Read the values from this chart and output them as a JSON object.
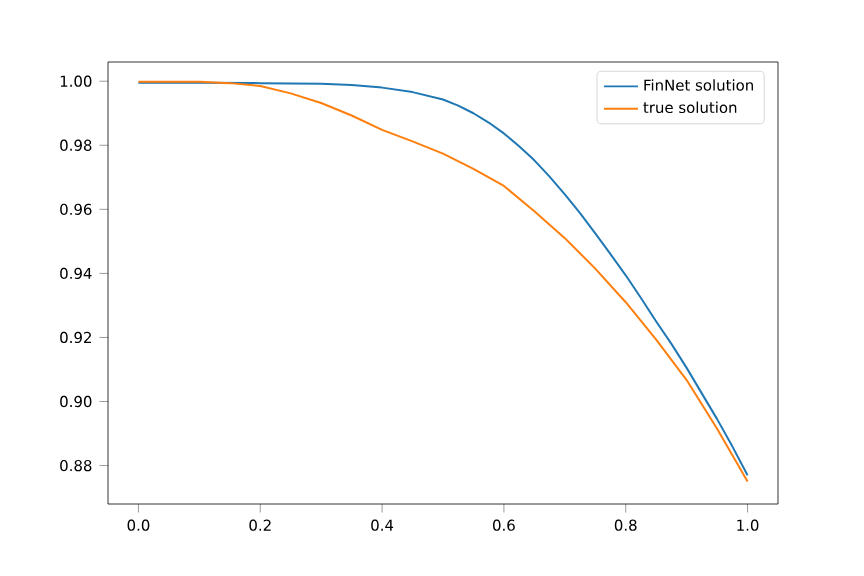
{
  "chart_data": {
    "type": "line",
    "xlim": [
      -0.05,
      1.05
    ],
    "ylim": [
      0.868,
      1.006
    ],
    "xticks": [
      {
        "value": 0,
        "label": "0.0"
      },
      0.2,
      0.4,
      0.6,
      0.8,
      {
        "value": 1,
        "label": "1.0"
      }
    ],
    "yticks": [
      0.88,
      {
        "value": 0.9,
        "label": "0.90"
      },
      0.92,
      0.94,
      0.96,
      0.98,
      {
        "value": 1,
        "label": "1.00"
      }
    ],
    "legend": "top right",
    "grid": false,
    "series": [
      {
        "name": "FinNet solution",
        "color": "#1f77b4",
        "x": [
          0,
          0.1,
          0.2,
          0.3,
          0.35,
          0.4,
          0.45,
          0.5,
          0.525,
          0.55,
          0.575,
          0.6,
          0.625,
          0.65,
          0.675,
          0.7,
          0.725,
          0.75,
          0.775,
          0.8,
          0.825,
          0.85,
          0.875,
          0.9,
          0.925,
          0.95,
          0.975,
          1.0
        ],
        "values": [
          0.9995,
          0.9995,
          0.9994,
          0.9992,
          0.9988,
          0.998,
          0.9966,
          0.9943,
          0.9924,
          0.99,
          0.9871,
          0.9837,
          0.9797,
          0.9753,
          0.9702,
          0.9647,
          0.9588,
          0.9525,
          0.946,
          0.9394,
          0.9323,
          0.925,
          0.918,
          0.9105,
          0.9025,
          0.8945,
          0.886,
          0.877
        ]
      },
      {
        "name": "true solution",
        "color": "#ff7f0e",
        "x": [
          0,
          0.1,
          0.15,
          0.2,
          0.25,
          0.3,
          0.35,
          0.4,
          0.45,
          0.5,
          0.55,
          0.6,
          0.65,
          0.7,
          0.75,
          0.8,
          0.85,
          0.9,
          0.95,
          1.0
        ],
        "values": [
          0.9998,
          0.9998,
          0.9994,
          0.9985,
          0.9962,
          0.9932,
          0.9893,
          0.9848,
          0.9812,
          0.9774,
          0.9726,
          0.9673,
          0.9594,
          0.951,
          0.9415,
          0.931,
          0.9193,
          0.9067,
          0.8915,
          0.875
        ]
      }
    ]
  }
}
